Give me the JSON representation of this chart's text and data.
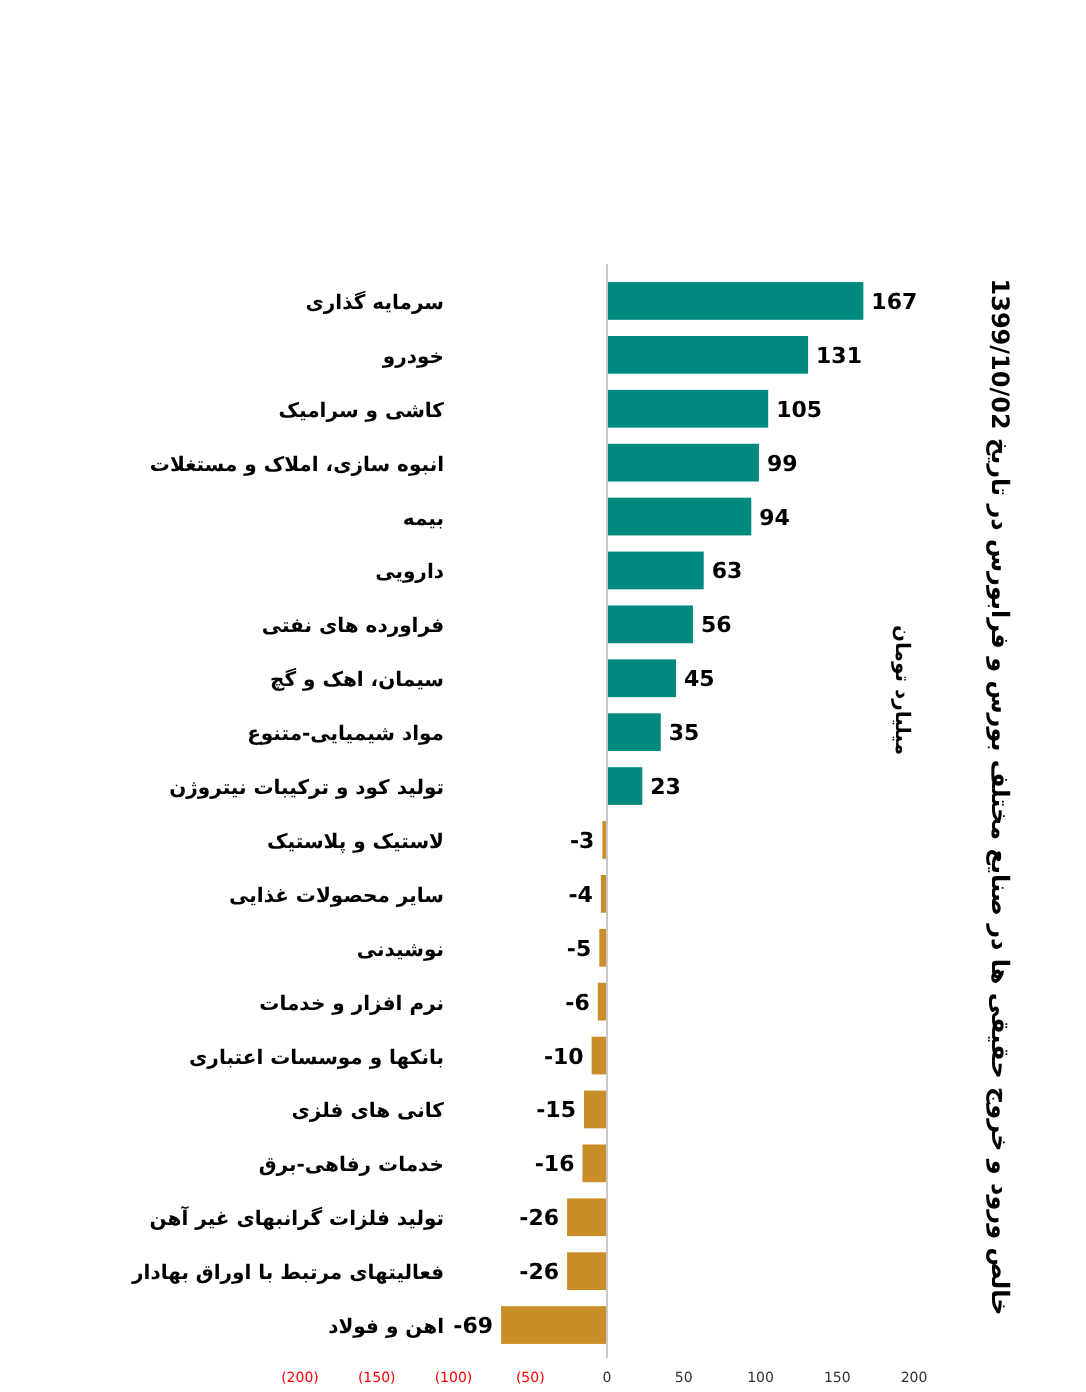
{
  "chart_data": {
    "type": "bar",
    "orientation": "horizontal",
    "title": "خالص ورود و خروج حقیقی ها در صنایع مختلف  بورس و فرابورس در تاریخ 1399/10/02",
    "ylabel": "میلیارد تومان",
    "categories": [
      "سرمایه گذاری",
      "خودرو",
      "کاشی و سرامیک",
      "انبوه سازی، املاک و مستغلات",
      "بیمه",
      "دارویی",
      "فراورده های نفتی",
      "سیمان، اهک و گچ",
      "مواد شیمیایی-متنوع",
      "تولید کود و ترکیبات نیتروژن",
      "لاستیک و پلاستیک",
      "سایر محصولات غذایی",
      "نوشیدنی",
      "نرم افزار و خدمات",
      "بانکها و موسسات اعتباری",
      "کانی های فلزی",
      "خدمات رفاهی-برق",
      "تولید فلزات گرانبهای غیر آهن",
      "فعالیتهای مرتبط با اوراق بهادار",
      "اهن و فولاد"
    ],
    "values": [
      167,
      131,
      105,
      99,
      94,
      63,
      56,
      45,
      35,
      23,
      -3,
      -4,
      -5,
      -6,
      -10,
      -15,
      -16,
      -26,
      -26,
      -69
    ],
    "colors": [
      "#00897f",
      "#00897f",
      "#00897f",
      "#00897f",
      "#00897f",
      "#00897f",
      "#00897f",
      "#00897f",
      "#00897f",
      "#00897f",
      "#c98e27",
      "#c98e27",
      "#c98e27",
      "#c98e27",
      "#c98e27",
      "#c98e27",
      "#c98e27",
      "#c98e27",
      "#c98e27",
      "#c98e27"
    ],
    "xlim": [
      -200,
      200
    ],
    "xticks": [
      {
        "value": -200,
        "label": "(200)"
      },
      {
        "value": -150,
        "label": "(150)"
      },
      {
        "value": -100,
        "label": "(100)"
      },
      {
        "value": -50,
        "label": "(50)"
      },
      0,
      50,
      100,
      150,
      200
    ],
    "data_labels": true
  }
}
